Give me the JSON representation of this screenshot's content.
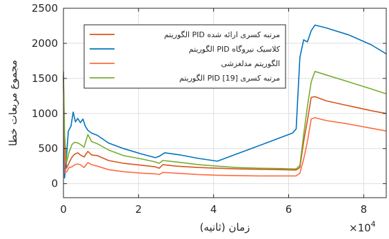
{
  "chart_data": {
    "type": "line",
    "xlabel": "زمان (ثانیه)",
    "ylabel": "مجموع مربعات خطا",
    "x_exponent_label": "×10",
    "x_exponent_power": "4",
    "xlim": [
      0,
      86000
    ],
    "ylim": [
      -200,
      2500
    ],
    "x_ticks": [
      0,
      20000,
      40000,
      60000,
      80000
    ],
    "x_tick_labels": [
      "0",
      "2",
      "4",
      "6",
      "8"
    ],
    "y_ticks": [
      0,
      500,
      1000,
      1500,
      2000,
      2500
    ],
    "y_tick_labels": [
      "0",
      "500",
      "1000",
      "1500",
      "2000",
      "2500"
    ],
    "grid": true,
    "legend_position": "top-left",
    "series": [
      {
        "name": "الگوریتم PID مرتبه کسری ارائه شده",
        "color": "#d95319",
        "points": [
          [
            0,
            1500
          ],
          [
            300,
            600
          ],
          [
            800,
            220
          ],
          [
            1500,
            300
          ],
          [
            2300,
            380
          ],
          [
            3000,
            420
          ],
          [
            3800,
            440
          ],
          [
            4500,
            410
          ],
          [
            5500,
            380
          ],
          [
            6500,
            460
          ],
          [
            7500,
            410
          ],
          [
            9000,
            400
          ],
          [
            12000,
            330
          ],
          [
            16000,
            290
          ],
          [
            21000,
            260
          ],
          [
            24500,
            240
          ],
          [
            25500,
            220
          ],
          [
            26500,
            270
          ],
          [
            30000,
            250
          ],
          [
            36000,
            230
          ],
          [
            41000,
            220
          ],
          [
            46000,
            210
          ],
          [
            52000,
            205
          ],
          [
            58000,
            200
          ],
          [
            61000,
            195
          ],
          [
            62000,
            195
          ],
          [
            63000,
            230
          ],
          [
            64000,
            600
          ],
          [
            65000,
            900
          ],
          [
            66000,
            1230
          ],
          [
            67000,
            1240
          ],
          [
            70000,
            1180
          ],
          [
            76000,
            1110
          ],
          [
            82000,
            1040
          ],
          [
            86000,
            1000
          ]
        ]
      },
      {
        "name": "الگوریتم PID کلاسیک نیروگاه",
        "color": "#0072bd",
        "points": [
          [
            0,
            1550
          ],
          [
            300,
            80
          ],
          [
            700,
            300
          ],
          [
            1300,
            750
          ],
          [
            2000,
            820
          ],
          [
            2600,
            1020
          ],
          [
            3200,
            880
          ],
          [
            3800,
            930
          ],
          [
            4500,
            870
          ],
          [
            5200,
            920
          ],
          [
            5800,
            820
          ],
          [
            6500,
            760
          ],
          [
            7500,
            720
          ],
          [
            9000,
            690
          ],
          [
            12000,
            580
          ],
          [
            16000,
            500
          ],
          [
            21000,
            420
          ],
          [
            24500,
            370
          ],
          [
            25500,
            390
          ],
          [
            27000,
            440
          ],
          [
            31000,
            410
          ],
          [
            36000,
            360
          ],
          [
            41000,
            320
          ],
          [
            45000,
            400
          ],
          [
            50000,
            500
          ],
          [
            54000,
            580
          ],
          [
            58000,
            660
          ],
          [
            61000,
            720
          ],
          [
            62000,
            780
          ],
          [
            63000,
            1800
          ],
          [
            64000,
            2050
          ],
          [
            65000,
            2020
          ],
          [
            66000,
            2180
          ],
          [
            67000,
            2260
          ],
          [
            70000,
            2220
          ],
          [
            76000,
            2120
          ],
          [
            82000,
            1980
          ],
          [
            86000,
            1850
          ]
        ]
      },
      {
        "name": "الگوریتم مدلغزشی",
        "color": "#ff6a3d",
        "points": [
          [
            0,
            1400
          ],
          [
            400,
            150
          ],
          [
            900,
            170
          ],
          [
            1500,
            230
          ],
          [
            2300,
            240
          ],
          [
            3000,
            270
          ],
          [
            3800,
            280
          ],
          [
            4500,
            270
          ],
          [
            5500,
            230
          ],
          [
            6500,
            300
          ],
          [
            7500,
            270
          ],
          [
            9000,
            250
          ],
          [
            12000,
            200
          ],
          [
            16000,
            170
          ],
          [
            21000,
            150
          ],
          [
            24500,
            140
          ],
          [
            25500,
            130
          ],
          [
            26500,
            160
          ],
          [
            30000,
            150
          ],
          [
            36000,
            130
          ],
          [
            41000,
            120
          ],
          [
            46000,
            115
          ],
          [
            52000,
            110
          ],
          [
            58000,
            110
          ],
          [
            61000,
            110
          ],
          [
            62000,
            110
          ],
          [
            63000,
            150
          ],
          [
            64000,
            350
          ],
          [
            65000,
            600
          ],
          [
            66000,
            920
          ],
          [
            67000,
            940
          ],
          [
            70000,
            900
          ],
          [
            76000,
            850
          ],
          [
            82000,
            790
          ],
          [
            86000,
            750
          ]
        ]
      },
      {
        "name": "الگوریتم PID مرتبه کسری [19]",
        "color": "#77ac30",
        "points": [
          [
            0,
            1600
          ],
          [
            300,
            700
          ],
          [
            800,
            300
          ],
          [
            1500,
            450
          ],
          [
            2300,
            560
          ],
          [
            3000,
            590
          ],
          [
            3800,
            580
          ],
          [
            4500,
            560
          ],
          [
            5500,
            520
          ],
          [
            6500,
            700
          ],
          [
            7500,
            600
          ],
          [
            9000,
            570
          ],
          [
            12000,
            480
          ],
          [
            16000,
            400
          ],
          [
            21000,
            350
          ],
          [
            24500,
            310
          ],
          [
            25500,
            290
          ],
          [
            26500,
            330
          ],
          [
            30000,
            310
          ],
          [
            36000,
            270
          ],
          [
            41000,
            250
          ],
          [
            46000,
            230
          ],
          [
            52000,
            220
          ],
          [
            58000,
            215
          ],
          [
            61000,
            210
          ],
          [
            62000,
            210
          ],
          [
            63000,
            260
          ],
          [
            64000,
            700
          ],
          [
            65000,
            1100
          ],
          [
            66000,
            1450
          ],
          [
            67000,
            1600
          ],
          [
            70000,
            1550
          ],
          [
            76000,
            1450
          ],
          [
            82000,
            1350
          ],
          [
            86000,
            1280
          ]
        ]
      }
    ]
  }
}
